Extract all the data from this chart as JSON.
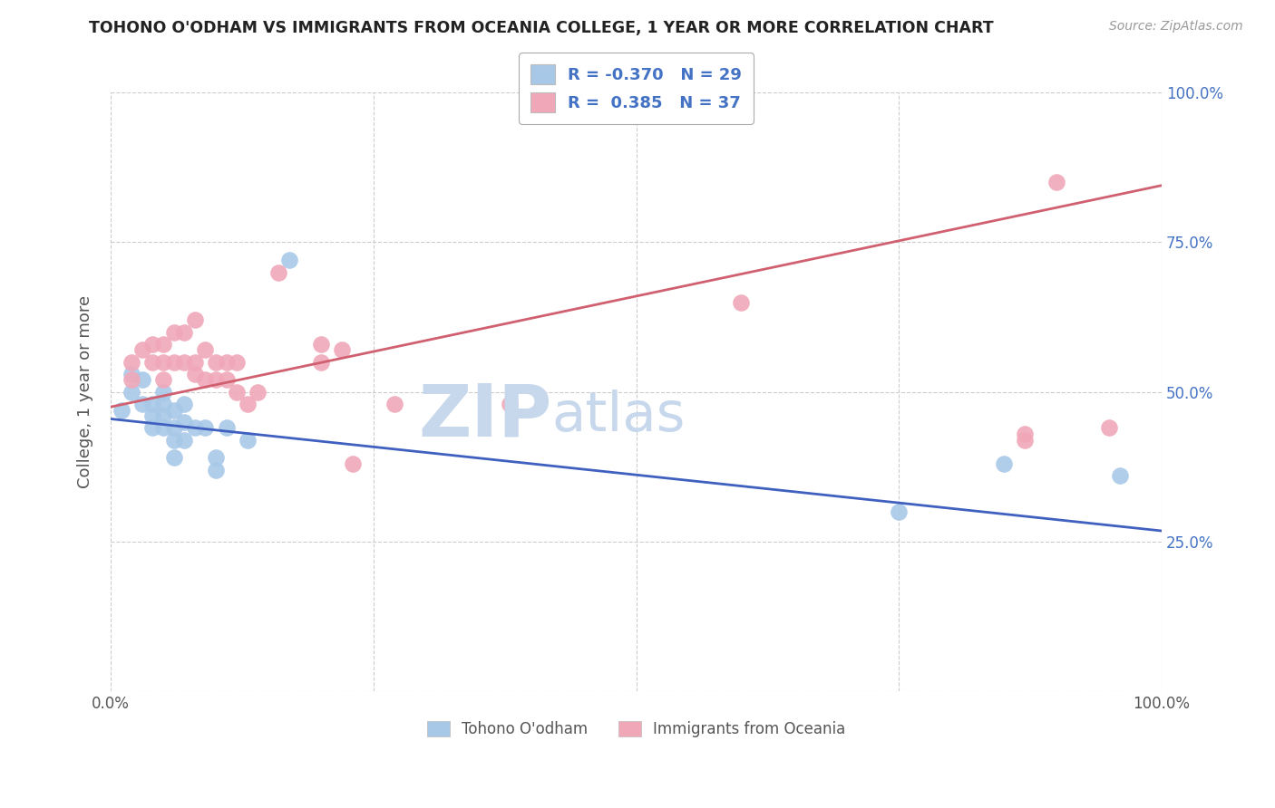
{
  "title": "TOHONO O'ODHAM VS IMMIGRANTS FROM OCEANIA COLLEGE, 1 YEAR OR MORE CORRELATION CHART",
  "source": "Source: ZipAtlas.com",
  "ylabel": "College, 1 year or more",
  "xlim": [
    0.0,
    1.0
  ],
  "ylim": [
    0.0,
    1.0
  ],
  "xticks": [
    0.0,
    0.25,
    0.5,
    0.75,
    1.0
  ],
  "yticks": [
    0.0,
    0.25,
    0.5,
    0.75,
    1.0
  ],
  "xtick_labels": [
    "0.0%",
    "",
    "",
    "",
    "100.0%"
  ],
  "ytick_labels_right": [
    "",
    "25.0%",
    "50.0%",
    "75.0%",
    "100.0%"
  ],
  "blue_R": -0.37,
  "blue_N": 29,
  "pink_R": 0.385,
  "pink_N": 37,
  "blue_color": "#A8C8E8",
  "pink_color": "#F0A8B8",
  "blue_line_color": "#4060C0",
  "pink_line_color": "#D06070",
  "watermark_zip": "ZIP",
  "watermark_atlas": "atlas",
  "watermark_color": "#C8D8EC",
  "blue_scatter_x": [
    0.01,
    0.02,
    0.02,
    0.03,
    0.03,
    0.04,
    0.04,
    0.04,
    0.05,
    0.05,
    0.05,
    0.05,
    0.06,
    0.06,
    0.06,
    0.06,
    0.07,
    0.07,
    0.07,
    0.08,
    0.09,
    0.1,
    0.1,
    0.11,
    0.13,
    0.17,
    0.75,
    0.85,
    0.96
  ],
  "blue_scatter_y": [
    0.47,
    0.5,
    0.53,
    0.48,
    0.52,
    0.44,
    0.46,
    0.48,
    0.44,
    0.46,
    0.48,
    0.5,
    0.39,
    0.42,
    0.44,
    0.47,
    0.42,
    0.45,
    0.48,
    0.44,
    0.44,
    0.37,
    0.39,
    0.44,
    0.42,
    0.72,
    0.3,
    0.38,
    0.36
  ],
  "pink_scatter_x": [
    0.02,
    0.02,
    0.03,
    0.04,
    0.04,
    0.05,
    0.05,
    0.05,
    0.06,
    0.06,
    0.07,
    0.07,
    0.08,
    0.08,
    0.08,
    0.09,
    0.09,
    0.1,
    0.1,
    0.11,
    0.11,
    0.12,
    0.12,
    0.13,
    0.14,
    0.16,
    0.2,
    0.2,
    0.22,
    0.23,
    0.27,
    0.38,
    0.6,
    0.87,
    0.87,
    0.9,
    0.95
  ],
  "pink_scatter_y": [
    0.52,
    0.55,
    0.57,
    0.55,
    0.58,
    0.52,
    0.55,
    0.58,
    0.55,
    0.6,
    0.55,
    0.6,
    0.53,
    0.55,
    0.62,
    0.52,
    0.57,
    0.52,
    0.55,
    0.52,
    0.55,
    0.5,
    0.55,
    0.48,
    0.5,
    0.7,
    0.55,
    0.58,
    0.57,
    0.38,
    0.48,
    0.48,
    0.65,
    0.42,
    0.43,
    0.85,
    0.44
  ],
  "blue_trend_x": [
    0.0,
    1.0
  ],
  "blue_trend_y": [
    0.455,
    0.268
  ],
  "pink_trend_x": [
    0.0,
    1.0
  ],
  "pink_trend_y": [
    0.475,
    0.845
  ],
  "grid_color": "#CCCCCC",
  "background_color": "#FFFFFF"
}
